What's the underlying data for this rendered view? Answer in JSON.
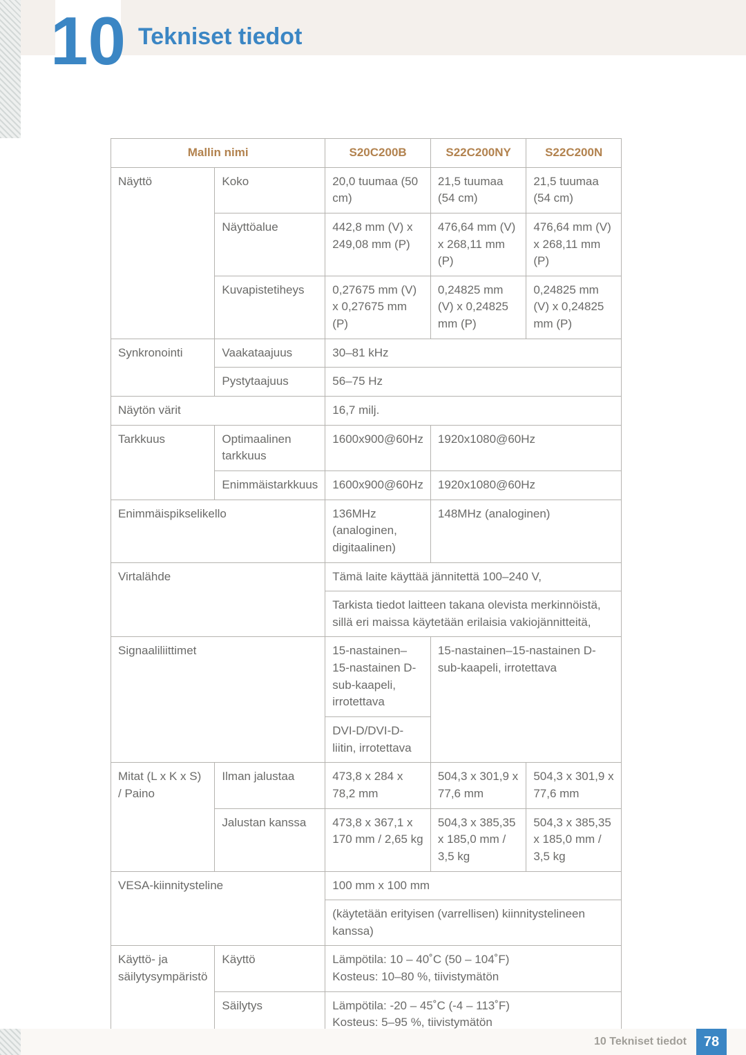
{
  "chapter": {
    "number": "10",
    "title": "Tekniset tiedot"
  },
  "table": {
    "header": {
      "model_label": "Mallin nimi",
      "models": [
        "S20C200B",
        "S22C200NY",
        "S22C200N"
      ]
    },
    "rows": {
      "display_label": "Näyttö",
      "size_label": "Koko",
      "size": [
        "20,0 tuumaa (50 cm)",
        "21,5 tuumaa (54 cm)",
        "21,5 tuumaa (54 cm)"
      ],
      "area_label": "Näyttöalue",
      "area": [
        "442,8 mm (V) x 249,08 mm (P)",
        "476,64 mm (V) x 268,11 mm (P)",
        "476,64 mm (V) x 268,11 mm (P)"
      ],
      "pitch_label": "Kuvapistetiheys",
      "pitch": [
        "0,27675 mm (V) x 0,27675 mm (P)",
        "0,24825 mm (V) x 0,24825 mm (P)",
        "0,24825 mm (V) x 0,24825 mm (P)"
      ],
      "sync_label": "Synkronointi",
      "hfreq_label": "Vaakataajuus",
      "hfreq": "30–81 kHz",
      "vfreq_label": "Pystytaajuus",
      "vfreq": "56–75 Hz",
      "colors_label": "Näytön värit",
      "colors": "16,7 milj.",
      "resolution_label": "Tarkkuus",
      "opt_res_label": "Optimaalinen tarkkuus",
      "opt_res": [
        "1600x900@60Hz",
        "1920x1080@60Hz"
      ],
      "max_res_label": "Enimmäistarkkuus",
      "max_res": [
        "1600x900@60Hz",
        "1920x1080@60Hz"
      ],
      "pixelclock_label": "Enimmäispikselikello",
      "pixelclock": [
        "136MHz (analoginen, digitaalinen)",
        "148MHz (analoginen)"
      ],
      "power_label": "Virtalähde",
      "power_line1": "Tämä laite käyttää jännitettä 100–240 V,",
      "power_line2": "Tarkista tiedot laitteen takana olevista merkinnöistä, sillä eri maissa käytetään erilaisia vakiojännitteitä,",
      "signal_label": "Signaaliliittimet",
      "signal_col1_a": "15-nastainen–15-nastainen D-sub-kaapeli, irrotettava",
      "signal_col1_b": "DVI-D/DVI-D-liitin, irrotettava",
      "signal_col2": "15-nastainen–15-nastainen D-sub-kaapeli, irrotettava",
      "dims_label": "Mitat (L x K x S) / Paino",
      "nostand_label": "Ilman jalustaa",
      "nostand": [
        "473,8 x 284 x 78,2 mm",
        "504,3 x 301,9 x 77,6 mm",
        "504,3 x 301,9 x 77,6 mm"
      ],
      "stand_label": "Jalustan kanssa",
      "stand": [
        "473,8 x 367,1 x 170 mm / 2,65 kg",
        "504,3 x 385,35 x 185,0 mm / 3,5 kg",
        "504,3 x 385,35 x 185,0 mm / 3,5 kg"
      ],
      "vesa_label": "VESA-kiinnitysteline",
      "vesa_line1": "100 mm x 100 mm",
      "vesa_line2": "(käytetään erityisen (varrellisen) kiinnitystelineen kanssa)",
      "env_label": "Käyttö- ja säilytysympäristö",
      "use_label": "Käyttö",
      "use_value": "Lämpötila: 10 – 40˚C (50 – 104˚F)\nKosteus: 10–80 %, tiivistymätön",
      "storage_label": "Säilytys",
      "storage_value": "Lämpötila: -20 – 45˚C (-4 – 113˚F)\nKosteus: 5–95 %, tiivistymätön"
    }
  },
  "footer": {
    "text": "10 Tekniset tiedot",
    "page": "78"
  },
  "colors": {
    "accent_blue": "#3b86c4",
    "header_tan": "#b2824e",
    "body_text": "#6a6a68",
    "border": "#b5b3af",
    "band_bg": "#f4f0ec"
  }
}
